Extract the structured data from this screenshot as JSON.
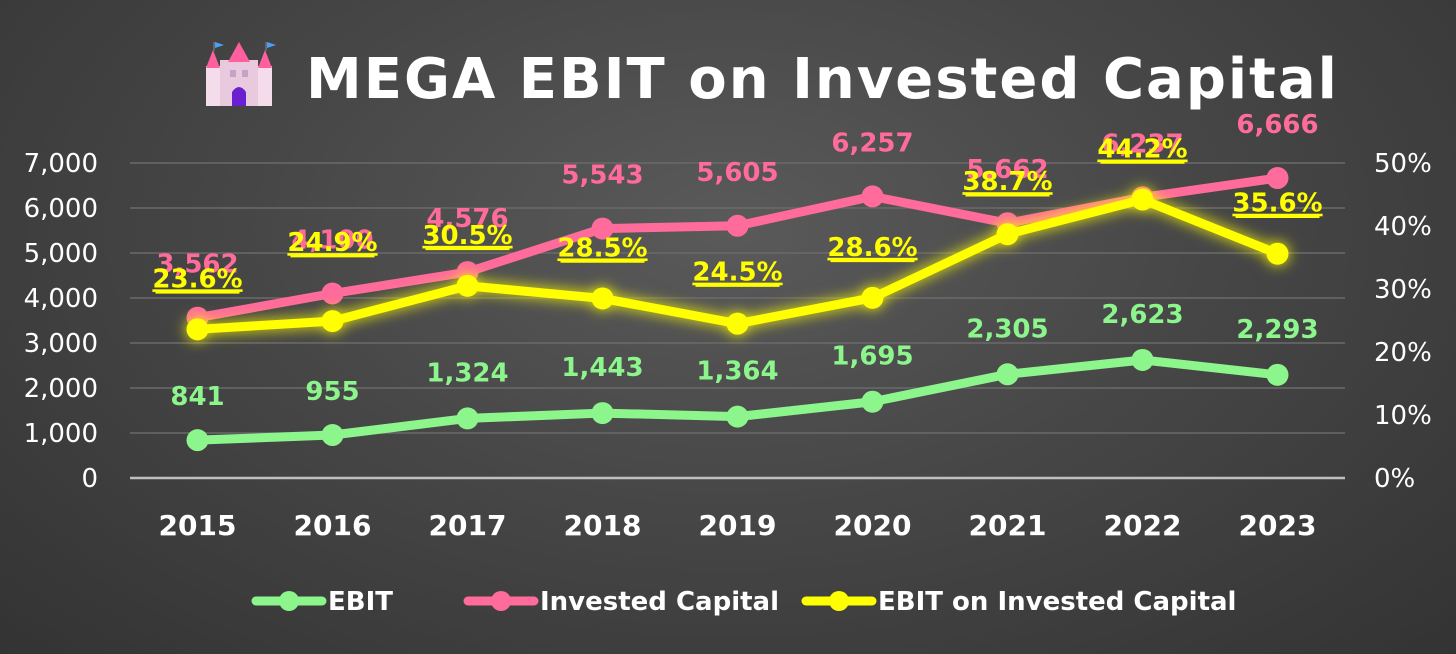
{
  "chart_data": {
    "type": "line",
    "title": "MEGA EBIT on Invested Capital",
    "title_icon": "castle-icon",
    "categories": [
      "2015",
      "2016",
      "2017",
      "2018",
      "2019",
      "2020",
      "2021",
      "2022",
      "2023"
    ],
    "y_left": {
      "min": 0,
      "max": 7000,
      "ticks": [
        "0",
        "1,000",
        "2,000",
        "3,000",
        "4,000",
        "5,000",
        "6,000",
        "7,000"
      ]
    },
    "y_right": {
      "min": 0,
      "max": 50,
      "ticks": [
        "0%",
        "10%",
        "20%",
        "30%",
        "40%",
        "50%"
      ]
    },
    "series": [
      {
        "name": "EBIT",
        "axis": "left",
        "color": "#8cf58c",
        "values": [
          841,
          955,
          1324,
          1443,
          1364,
          1695,
          2305,
          2623,
          2293
        ],
        "labels": [
          "841",
          "955",
          "1,324",
          "1,443",
          "1,364",
          "1,695",
          "2,305",
          "2,623",
          "2,293"
        ]
      },
      {
        "name": "Invested Capital",
        "axis": "left",
        "color": "#ff6b9a",
        "values": [
          3562,
          4100,
          4576,
          5543,
          5605,
          6257,
          5662,
          6237,
          6666
        ],
        "labels": [
          "3,562",
          "4,100",
          "4,576",
          "5,543",
          "5,605",
          "6,257",
          "5,662",
          "6,237",
          "6,666"
        ]
      },
      {
        "name": "EBIT on Invested Capital",
        "axis": "right",
        "color": "#ffff00",
        "values": [
          23.6,
          24.9,
          30.5,
          28.5,
          24.5,
          28.6,
          38.7,
          44.2,
          35.6
        ],
        "labels": [
          "23.6%",
          "24.9%",
          "30.5%",
          "28.5%",
          "24.5%",
          "28.6%",
          "38.7%",
          "44.2%",
          "35.6%"
        ]
      }
    ],
    "legend_position": "bottom"
  }
}
